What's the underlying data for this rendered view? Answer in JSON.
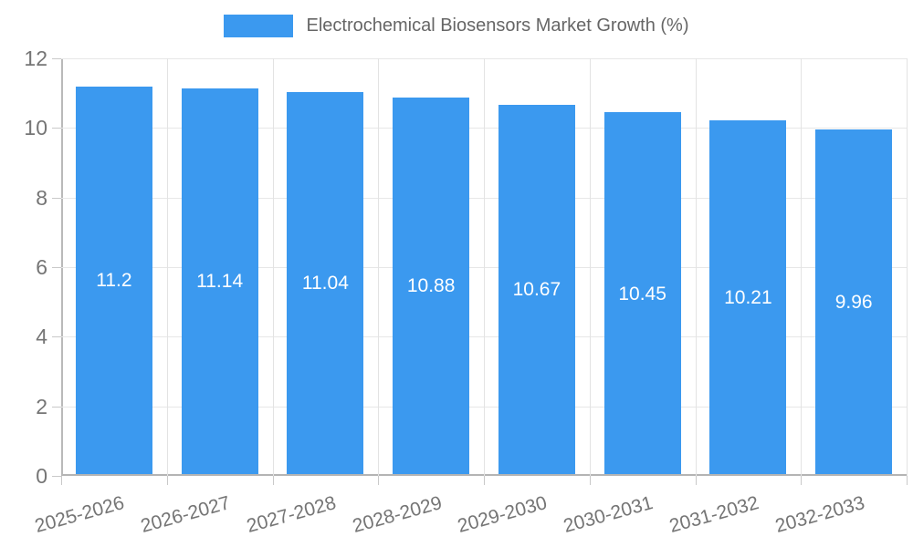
{
  "legend": {
    "label": "Electrochemical Biosensors Market Growth (%)"
  },
  "colors": {
    "bar": "#3b99ef",
    "legend_text": "#666666",
    "tick_text": "#757575",
    "value_text": "#ffffff",
    "grid": "#e7e7e7",
    "axis": "#b4b4b4"
  },
  "chart_data": {
    "type": "bar",
    "title": "Electrochemical Biosensors Market Growth (%)",
    "categories": [
      "2025-2026",
      "2026-2027",
      "2027-2028",
      "2028-2029",
      "2029-2030",
      "2030-2031",
      "2031-2032",
      "2032-2033"
    ],
    "values": [
      11.2,
      11.14,
      11.04,
      10.88,
      10.67,
      10.45,
      10.21,
      9.96
    ],
    "value_labels": [
      "11.2",
      "11.14",
      "11.04",
      "10.88",
      "10.67",
      "10.45",
      "10.21",
      "9.96"
    ],
    "xlabel": "",
    "ylabel": "",
    "ylim": [
      0,
      12
    ],
    "yticks": [
      0,
      2,
      4,
      6,
      8,
      10,
      12
    ],
    "grid": true,
    "legend_position": "top",
    "bar_color": "#3b99ef",
    "x_tick_rotation_deg": -15.5
  }
}
